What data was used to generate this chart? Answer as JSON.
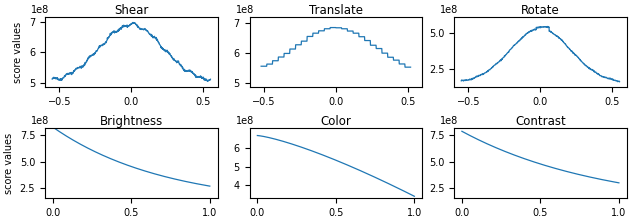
{
  "titles": [
    "Shear",
    "Translate",
    "Rotate",
    "Brightness",
    "Color",
    "Contrast"
  ],
  "ylabel": "score values",
  "line_color": "#1f77b4",
  "shear": {
    "xlim": [
      -0.6,
      0.6
    ],
    "ylim": [
      485000000.0,
      715000000.0
    ],
    "yticks": [
      500000000.0,
      600000000.0,
      700000000.0
    ],
    "xticks": [
      -0.5,
      0.0,
      0.5
    ]
  },
  "translate": {
    "xlim": [
      -0.6,
      0.6
    ],
    "ylim": [
      485000000.0,
      720000000.0
    ],
    "yticks": [
      500000000.0,
      600000000.0,
      700000000.0
    ],
    "xticks": [
      -0.5,
      0.0,
      0.5
    ]
  },
  "rotate": {
    "xlim": [
      -0.6,
      0.6
    ],
    "ylim": [
      120000000.0,
      610000000.0
    ],
    "yticks": [
      250000000.0,
      500000000.0
    ],
    "xticks": [
      -0.5,
      0.0,
      0.5
    ]
  },
  "brightness": {
    "xlim": [
      -0.05,
      1.05
    ],
    "ylim": [
      150000000.0,
      820000000.0
    ],
    "yticks": [
      250000000.0,
      500000000.0,
      750000000.0
    ],
    "xticks": [
      0.0,
      0.5,
      1.0
    ]
  },
  "color": {
    "xlim": [
      -0.05,
      1.05
    ],
    "ylim": [
      330000000.0,
      710000000.0
    ],
    "yticks": [
      400000000.0,
      500000000.0,
      600000000.0
    ],
    "xticks": [
      0.0,
      0.5,
      1.0
    ]
  },
  "contrast": {
    "xlim": [
      -0.05,
      1.05
    ],
    "ylim": [
      150000000.0,
      820000000.0
    ],
    "yticks": [
      250000000.0,
      500000000.0,
      750000000.0
    ],
    "xticks": [
      0.0,
      0.5,
      1.0
    ]
  }
}
